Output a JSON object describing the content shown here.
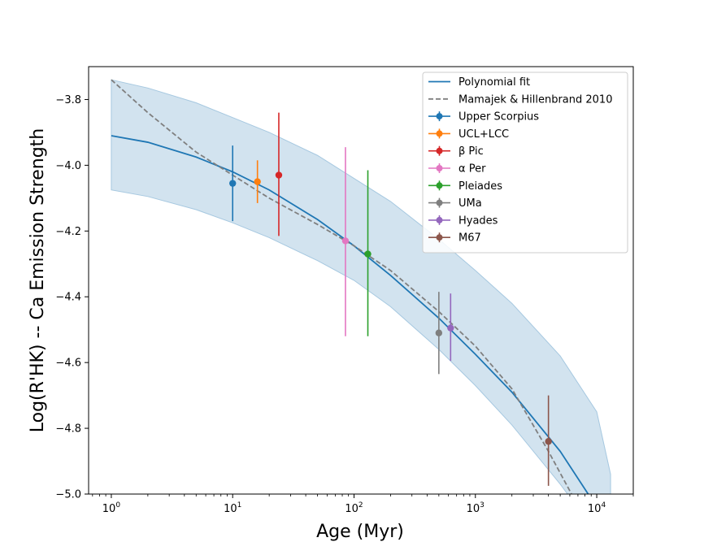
{
  "chart_data": {
    "type": "scatter",
    "title": "",
    "xlabel": "Age (Myr)",
    "ylabel": "Log(R'HK) -- Ca Emission Strength",
    "xscale": "log",
    "xlim": [
      0.65,
      20000
    ],
    "ylim": [
      -5.0,
      -3.7
    ],
    "x_ticks": [
      1,
      10,
      100,
      1000,
      10000
    ],
    "x_tick_labels": [
      {
        "base": "10",
        "exp": "0"
      },
      {
        "base": "10",
        "exp": "1"
      },
      {
        "base": "10",
        "exp": "2"
      },
      {
        "base": "10",
        "exp": "3"
      },
      {
        "base": "10",
        "exp": "4"
      }
    ],
    "y_ticks": [
      -5.0,
      -4.8,
      -4.6,
      -4.4,
      -4.2,
      -4.0,
      -3.8
    ],
    "y_tick_labels": [
      "−5.0",
      "−4.8",
      "−4.6",
      "−4.4",
      "−4.2",
      "−4.0",
      "−3.8"
    ],
    "grid": false,
    "legend_position": "top-right",
    "band": {
      "color": "#a6c8e0",
      "x": [
        1,
        2,
        5,
        10,
        20,
        50,
        100,
        200,
        500,
        1000,
        2000,
        5000,
        10000,
        13000
      ],
      "lower": [
        -4.075,
        -4.095,
        -4.135,
        -4.175,
        -4.22,
        -4.29,
        -4.35,
        -4.43,
        -4.56,
        -4.67,
        -4.79,
        -4.97,
        -5.12,
        -5.17
      ],
      "upper": [
        -3.74,
        -3.765,
        -3.81,
        -3.855,
        -3.9,
        -3.97,
        -4.04,
        -4.11,
        -4.225,
        -4.32,
        -4.42,
        -4.58,
        -4.75,
        -4.94
      ]
    },
    "lines": [
      {
        "name": "Polynomial fit",
        "color": "#1f77b4",
        "dash": "solid",
        "x": [
          1,
          2,
          5,
          10,
          20,
          50,
          100,
          200,
          500,
          1000,
          2000,
          5000,
          8500
        ],
        "y": [
          -3.91,
          -3.93,
          -3.975,
          -4.02,
          -4.075,
          -4.165,
          -4.245,
          -4.335,
          -4.465,
          -4.575,
          -4.69,
          -4.87,
          -5.0
        ]
      },
      {
        "name": "Mamajek & Hillenbrand 2010",
        "color": "#7f7f7f",
        "dash": "dashed",
        "x": [
          1,
          2,
          5,
          10,
          20,
          50,
          100,
          200,
          500,
          1000,
          2000,
          4000,
          6200
        ],
        "y": [
          -3.74,
          -3.84,
          -3.96,
          -4.03,
          -4.1,
          -4.18,
          -4.245,
          -4.32,
          -4.445,
          -4.55,
          -4.68,
          -4.87,
          -5.0
        ]
      }
    ],
    "series": [
      {
        "name": "Upper Scorpius",
        "latex": false,
        "color": "#1f77b4",
        "x": 10,
        "y": -4.055,
        "ylow": -4.17,
        "yhigh": -3.94
      },
      {
        "name": "UCL+LCC",
        "latex": false,
        "color": "#ff7f0e",
        "x": 16,
        "y": -4.05,
        "ylow": -4.115,
        "yhigh": -3.985
      },
      {
        "name": "β Pic",
        "latex": true,
        "color": "#d62728",
        "x": 24,
        "y": -4.03,
        "ylow": -4.215,
        "yhigh": -3.84
      },
      {
        "name": "α Per",
        "latex": true,
        "color": "#e377c2",
        "x": 85,
        "y": -4.23,
        "ylow": -4.52,
        "yhigh": -3.945
      },
      {
        "name": "Pleiades",
        "latex": false,
        "color": "#2ca02c",
        "x": 130,
        "y": -4.27,
        "ylow": -4.52,
        "yhigh": -4.015
      },
      {
        "name": "UMa",
        "latex": false,
        "color": "#7f7f7f",
        "x": 500,
        "y": -4.51,
        "ylow": -4.635,
        "yhigh": -4.385
      },
      {
        "name": "Hyades",
        "latex": false,
        "color": "#9467bd",
        "x": 625,
        "y": -4.495,
        "ylow": -4.595,
        "yhigh": -4.39
      },
      {
        "name": "M67",
        "latex": false,
        "color": "#8c564b",
        "x": 4000,
        "y": -4.84,
        "ylow": -4.975,
        "yhigh": -4.7
      }
    ]
  }
}
